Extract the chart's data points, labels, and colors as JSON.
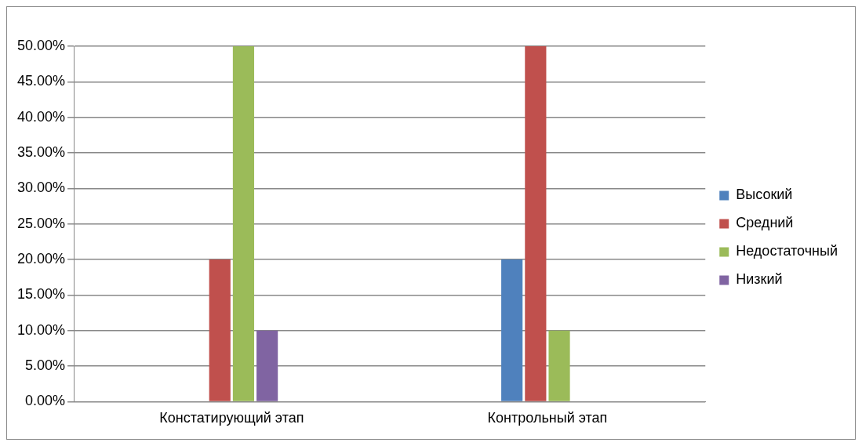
{
  "chart_data": {
    "type": "bar",
    "categories": [
      "Констатирующий этап",
      "Контрольный этап"
    ],
    "series": [
      {
        "name": "Высокий",
        "color": "#4f81bd",
        "values": [
          0,
          20
        ]
      },
      {
        "name": "Средний",
        "color": "#c0504d",
        "values": [
          20,
          50
        ]
      },
      {
        "name": "Недостаточный",
        "color": "#9bbb59",
        "values": [
          50,
          10
        ]
      },
      {
        "name": "Низкий",
        "color": "#8064a2",
        "values": [
          10,
          0
        ]
      }
    ],
    "ylim": [
      0,
      50
    ],
    "yticks": [
      {
        "value": 0,
        "label": "0.00%"
      },
      {
        "value": 5,
        "label": "5.00%"
      },
      {
        "value": 10,
        "label": "10.00%"
      },
      {
        "value": 15,
        "label": "15.00%"
      },
      {
        "value": 20,
        "label": "20.00%"
      },
      {
        "value": 25,
        "label": "25.00%"
      },
      {
        "value": 30,
        "label": "30.00%"
      },
      {
        "value": 35,
        "label": "35.00%"
      },
      {
        "value": 40,
        "label": "40.00%"
      },
      {
        "value": 45,
        "label": "45.00%"
      },
      {
        "value": 50,
        "label": "50.00%"
      }
    ],
    "grid": "y",
    "legend": "right"
  }
}
